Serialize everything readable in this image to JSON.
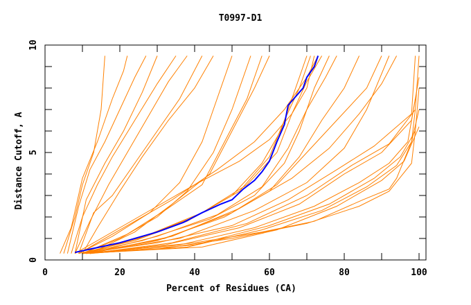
{
  "chart_data": {
    "type": "line",
    "title": "T0997-D1",
    "xlabel": "Percent of Residues (CA)",
    "ylabel": "Distance Cutoff, A",
    "xlim": [
      0,
      100
    ],
    "ylim": [
      0,
      10
    ],
    "x_ticks": [
      0,
      20,
      40,
      60,
      80,
      100
    ],
    "y_ticks": [
      0,
      5,
      10
    ],
    "grid": false,
    "colors": {
      "models": "#ff8000",
      "highlight": "#0000ff",
      "axes": "#000000"
    },
    "highlight_series": [
      [
        8,
        0.35
      ],
      [
        20,
        0.8
      ],
      [
        30,
        1.3
      ],
      [
        37,
        1.75
      ],
      [
        42,
        2.2
      ],
      [
        47,
        2.6
      ],
      [
        50,
        2.8
      ],
      [
        53,
        3.3
      ],
      [
        56,
        3.7
      ],
      [
        58,
        4.1
      ],
      [
        60,
        4.6
      ],
      [
        62,
        5.5
      ],
      [
        64,
        6.3
      ],
      [
        65,
        7.2
      ],
      [
        67,
        7.6
      ],
      [
        69,
        8.0
      ],
      [
        70,
        8.5
      ],
      [
        72,
        9.0
      ],
      [
        73,
        9.5
      ]
    ],
    "series": [
      [
        [
          5,
          0.3
        ],
        [
          8,
          2
        ],
        [
          10,
          3.5
        ],
        [
          13,
          5
        ],
        [
          15,
          7
        ],
        [
          16,
          9.5
        ]
      ],
      [
        [
          4,
          0.3
        ],
        [
          7,
          1.5
        ],
        [
          10,
          3.8
        ],
        [
          14,
          5.5
        ],
        [
          18,
          7.5
        ],
        [
          21,
          8.8
        ],
        [
          22,
          9.5
        ]
      ],
      [
        [
          6,
          0.3
        ],
        [
          9,
          2.5
        ],
        [
          12,
          4.2
        ],
        [
          16,
          5.5
        ],
        [
          20,
          7
        ],
        [
          24,
          8.5
        ],
        [
          27,
          9.5
        ]
      ],
      [
        [
          7,
          0.3
        ],
        [
          10,
          2
        ],
        [
          14,
          3.5
        ],
        [
          18,
          4.8
        ],
        [
          24,
          6.5
        ],
        [
          30,
          8.2
        ],
        [
          35,
          9.5
        ]
      ],
      [
        [
          8,
          0.3
        ],
        [
          12,
          1.8
        ],
        [
          17,
          3.5
        ],
        [
          22,
          5
        ],
        [
          28,
          6.8
        ],
        [
          33,
          8.3
        ],
        [
          38,
          9.5
        ]
      ],
      [
        [
          9,
          0.3
        ],
        [
          13,
          2.2
        ],
        [
          18,
          3
        ],
        [
          24,
          4.5
        ],
        [
          30,
          6
        ],
        [
          36,
          7.5
        ],
        [
          42,
          9.5
        ]
      ],
      [
        [
          8,
          0.3
        ],
        [
          11,
          2.8
        ],
        [
          16,
          4.5
        ],
        [
          21,
          6
        ],
        [
          26,
          7.8
        ],
        [
          30,
          9.5
        ]
      ],
      [
        [
          10,
          0.3
        ],
        [
          14,
          1.5
        ],
        [
          20,
          3.2
        ],
        [
          26,
          4.8
        ],
        [
          33,
          6.5
        ],
        [
          40,
          8
        ],
        [
          45,
          9.5
        ]
      ],
      [
        [
          10,
          0.3
        ],
        [
          20,
          1
        ],
        [
          30,
          2
        ],
        [
          38,
          3.2
        ],
        [
          45,
          5
        ],
        [
          50,
          7
        ],
        [
          55,
          9.5
        ]
      ],
      [
        [
          10,
          0.3
        ],
        [
          22,
          1.2
        ],
        [
          32,
          2.3
        ],
        [
          42,
          3.5
        ],
        [
          48,
          5.5
        ],
        [
          54,
          7.5
        ],
        [
          58,
          9.5
        ]
      ],
      [
        [
          12,
          0.3
        ],
        [
          24,
          1.3
        ],
        [
          34,
          2.6
        ],
        [
          44,
          4
        ],
        [
          50,
          6
        ],
        [
          56,
          8
        ],
        [
          60,
          9.5
        ]
      ],
      [
        [
          9,
          0.3
        ],
        [
          18,
          1.1
        ],
        [
          28,
          2.2
        ],
        [
          36,
          3.6
        ],
        [
          42,
          5.5
        ],
        [
          46,
          7.5
        ],
        [
          50,
          9.5
        ]
      ],
      [
        [
          10,
          0.3
        ],
        [
          25,
          1
        ],
        [
          40,
          2
        ],
        [
          52,
          3.2
        ],
        [
          60,
          4.8
        ],
        [
          64,
          6.5
        ],
        [
          68,
          8
        ],
        [
          71,
          9.5
        ]
      ],
      [
        [
          9,
          0.3
        ],
        [
          24,
          0.9
        ],
        [
          38,
          1.8
        ],
        [
          50,
          3
        ],
        [
          58,
          4.5
        ],
        [
          63,
          6
        ],
        [
          66,
          7.5
        ],
        [
          70,
          9.5
        ]
      ],
      [
        [
          11,
          0.3
        ],
        [
          28,
          1.2
        ],
        [
          42,
          2.2
        ],
        [
          54,
          3.5
        ],
        [
          62,
          5
        ],
        [
          66,
          6.8
        ],
        [
          70,
          8.3
        ],
        [
          74,
          9.5
        ]
      ],
      [
        [
          10,
          0.3
        ],
        [
          26,
          0.9
        ],
        [
          44,
          1.9
        ],
        [
          56,
          3
        ],
        [
          64,
          4.5
        ],
        [
          68,
          6
        ],
        [
          72,
          8
        ],
        [
          76,
          9.5
        ]
      ],
      [
        [
          12,
          0.3
        ],
        [
          30,
          1.1
        ],
        [
          46,
          2.1
        ],
        [
          58,
          3.4
        ],
        [
          65,
          5.2
        ],
        [
          70,
          7
        ],
        [
          75,
          8.5
        ],
        [
          78,
          9.5
        ]
      ],
      [
        [
          10,
          0.3
        ],
        [
          30,
          0.9
        ],
        [
          48,
          2
        ],
        [
          60,
          3.2
        ],
        [
          68,
          4.8
        ],
        [
          74,
          6.5
        ],
        [
          80,
          8
        ],
        [
          84,
          9.5
        ]
      ],
      [
        [
          11,
          0.3
        ],
        [
          32,
          1
        ],
        [
          50,
          2.2
        ],
        [
          62,
          3.5
        ],
        [
          70,
          5
        ],
        [
          78,
          6.5
        ],
        [
          86,
          8
        ],
        [
          90,
          9.5
        ]
      ],
      [
        [
          12,
          0.3
        ],
        [
          34,
          1.1
        ],
        [
          52,
          2.4
        ],
        [
          66,
          3.8
        ],
        [
          76,
          5.2
        ],
        [
          84,
          6.8
        ],
        [
          90,
          8.2
        ],
        [
          94,
          9.5
        ]
      ],
      [
        [
          10,
          0.3
        ],
        [
          36,
          1
        ],
        [
          56,
          2.3
        ],
        [
          70,
          3.6
        ],
        [
          80,
          5.2
        ],
        [
          86,
          7
        ],
        [
          92,
          9.5
        ]
      ],
      [
        [
          10,
          0.3
        ],
        [
          30,
          0.8
        ],
        [
          50,
          1.6
        ],
        [
          65,
          2.8
        ],
        [
          78,
          4.2
        ],
        [
          88,
          5.3
        ],
        [
          98,
          6.8
        ],
        [
          99,
          9.5
        ]
      ],
      [
        [
          11,
          0.3
        ],
        [
          32,
          0.7
        ],
        [
          52,
          1.5
        ],
        [
          68,
          2.6
        ],
        [
          80,
          4
        ],
        [
          90,
          5
        ],
        [
          98,
          6.5
        ],
        [
          100,
          8.5
        ]
      ],
      [
        [
          12,
          0.3
        ],
        [
          34,
          0.8
        ],
        [
          54,
          1.7
        ],
        [
          70,
          3
        ],
        [
          82,
          4.4
        ],
        [
          92,
          5.4
        ],
        [
          99,
          7
        ],
        [
          100,
          9.5
        ]
      ],
      [
        [
          10,
          0.3
        ],
        [
          36,
          0.7
        ],
        [
          56,
          1.5
        ],
        [
          72,
          2.5
        ],
        [
          84,
          3.6
        ],
        [
          92,
          4.5
        ],
        [
          97,
          5.5
        ],
        [
          99,
          7.5
        ]
      ],
      [
        [
          11,
          0.3
        ],
        [
          38,
          0.6
        ],
        [
          58,
          1.4
        ],
        [
          74,
          2.3
        ],
        [
          86,
          3.4
        ],
        [
          94,
          4.4
        ],
        [
          98,
          5.5
        ],
        [
          100,
          7
        ]
      ],
      [
        [
          12,
          0.3
        ],
        [
          40,
          0.7
        ],
        [
          60,
          1.6
        ],
        [
          76,
          2.6
        ],
        [
          88,
          3.8
        ],
        [
          95,
          4.8
        ],
        [
          99,
          6
        ],
        [
          100,
          8
        ]
      ],
      [
        [
          10,
          0.3
        ],
        [
          42,
          0.6
        ],
        [
          62,
          1.4
        ],
        [
          78,
          2.5
        ],
        [
          90,
          3.7
        ],
        [
          96,
          4.6
        ],
        [
          100,
          6.2
        ]
      ],
      [
        [
          12,
          0.3
        ],
        [
          40,
          0.8
        ],
        [
          58,
          1.3
        ],
        [
          72,
          1.8
        ],
        [
          85,
          2.8
        ],
        [
          92,
          3.3
        ],
        [
          94,
          3.8
        ],
        [
          98,
          5.5
        ],
        [
          99,
          7
        ]
      ],
      [
        [
          10,
          0.3
        ],
        [
          30,
          0.5
        ],
        [
          50,
          1
        ],
        [
          70,
          1.7
        ],
        [
          84,
          2.5
        ],
        [
          92,
          3.2
        ],
        [
          98,
          4.5
        ],
        [
          99,
          6
        ]
      ],
      [
        [
          8,
          0.3
        ],
        [
          20,
          1.5
        ],
        [
          30,
          2.5
        ],
        [
          40,
          3.5
        ],
        [
          52,
          4.6
        ],
        [
          60,
          5.6
        ],
        [
          66,
          6.8
        ],
        [
          70,
          8
        ],
        [
          72,
          9.5
        ]
      ],
      [
        [
          9,
          0.3
        ],
        [
          22,
          1.6
        ],
        [
          34,
          2.8
        ],
        [
          46,
          4.2
        ],
        [
          56,
          5.5
        ],
        [
          64,
          7
        ],
        [
          70,
          8.5
        ],
        [
          73,
          9.5
        ]
      ]
    ]
  }
}
